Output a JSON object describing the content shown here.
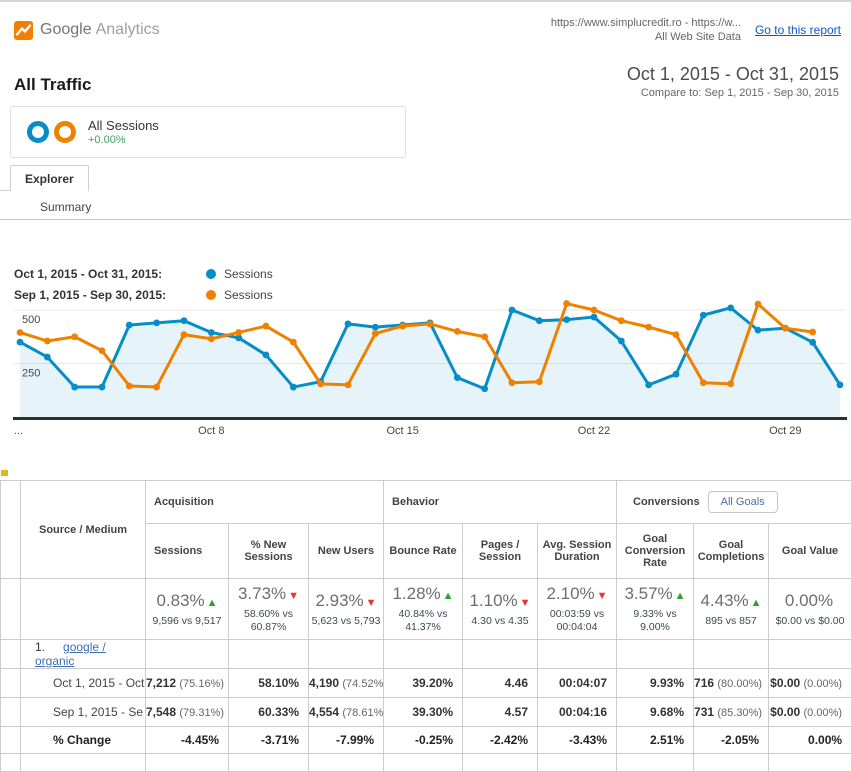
{
  "header": {
    "brand_google": "Google",
    "brand_analytics": "Analytics",
    "property_line1": "https://www.simplucredit.ro - https://w...",
    "property_line2": "All Web Site Data",
    "report_link": "Go to this report"
  },
  "title": {
    "page_title": "All Traffic",
    "date_range": "Oct 1, 2015 - Oct 31, 2015",
    "compare": "Compare to: Sep 1, 2015 - Sep 30, 2015"
  },
  "segment": {
    "name": "All Sessions",
    "delta": "+0.00%"
  },
  "tabs": {
    "explorer": "Explorer",
    "summary": "Summary"
  },
  "legend": [
    {
      "label": "Oct 1, 2015 - Oct 31, 2015:",
      "series": "Sessions",
      "color": "#058dc7"
    },
    {
      "label": "Sep 1, 2015 - Sep 30, 2015:",
      "series": "Sessions",
      "color": "#ee8100"
    }
  ],
  "chart_data": {
    "type": "line",
    "title": "Sessions trend, current vs previous period",
    "x_count": 31,
    "ylim": [
      0,
      500
    ],
    "grid": "horizontal",
    "yticks": [
      {
        "v": 500,
        "label": "500"
      },
      {
        "v": 250,
        "label": "250"
      }
    ],
    "xticks": [
      {
        "index": 0,
        "label": "..."
      },
      {
        "index": 7,
        "label": "Oct 8"
      },
      {
        "index": 14,
        "label": "Oct 15"
      },
      {
        "index": 21,
        "label": "Oct 22"
      },
      {
        "index": 28,
        "label": "Oct 29"
      }
    ],
    "series": [
      {
        "name": "Sessions (Oct 1, 2015 - Oct 31, 2015)",
        "color": "#058dc7",
        "area": true,
        "fill": "rgba(5,141,199,0.10)",
        "values": [
          350,
          280,
          140,
          140,
          430,
          440,
          450,
          395,
          370,
          290,
          140,
          165,
          435,
          420,
          430,
          440,
          184,
          132,
          500,
          450,
          455,
          467,
          355,
          150,
          200,
          476,
          510,
          406,
          415,
          349,
          150
        ]
      },
      {
        "name": "Sessions (Sep 1, 2015 - Sep 30, 2015)",
        "color": "#ee8100",
        "area": false,
        "fill": "none",
        "values": [
          395,
          355,
          375,
          310,
          145,
          140,
          385,
          365,
          395,
          425,
          350,
          155,
          150,
          390,
          425,
          435,
          400,
          375,
          160,
          165,
          530,
          500,
          450,
          420,
          385,
          160,
          155,
          528,
          415,
          397
        ]
      }
    ]
  },
  "table": {
    "row_header": "Source / Medium",
    "groups": {
      "acquisition": "Acquisition",
      "behavior": "Behavior",
      "conversions": "Conversions"
    },
    "all_goals_label": "All Goals",
    "columns": [
      "Sessions",
      "% New Sessions",
      "New Users",
      "Bounce Rate",
      "Pages / Session",
      "Avg. Session Duration",
      "Goal Conversion Rate",
      "Goal Completions",
      "Goal Value"
    ],
    "summary": [
      {
        "pct": "0.83%",
        "arrow": "▲",
        "cls": "arr up",
        "vs": "9,596 vs 9,517"
      },
      {
        "pct": "3.73%",
        "arrow": "▼",
        "cls": "arr down",
        "vs": "58.60% vs 60.87%"
      },
      {
        "pct": "2.93%",
        "arrow": "▼",
        "cls": "arr down",
        "vs": "5,623 vs 5,793"
      },
      {
        "pct": "1.28%",
        "arrow": "▲",
        "cls": "arr up",
        "vs": "40.84% vs 41.37%"
      },
      {
        "pct": "1.10%",
        "arrow": "▼",
        "cls": "arr down",
        "vs": "4.30 vs 4.35"
      },
      {
        "pct": "2.10%",
        "arrow": "▼",
        "cls": "arr down",
        "vs": "00:03:59 vs 00:04:04"
      },
      {
        "pct": "3.57%",
        "arrow": "▲",
        "cls": "arr up",
        "vs": "9.33% vs 9.00%"
      },
      {
        "pct": "4.43%",
        "arrow": "▲",
        "cls": "arr up",
        "vs": "895 vs 857"
      },
      {
        "pct": "0.00%",
        "arrow": "",
        "cls": "arr",
        "vs": "$0.00 vs $0.00"
      }
    ],
    "link_row": {
      "num": "1.",
      "link": "google / organic"
    },
    "rows": [
      {
        "label": "Oct 1, 2015 - Oct",
        "cells": [
          {
            "v": "7,212",
            "s": "(75.16%)"
          },
          {
            "v": "58.10%",
            "s": ""
          },
          {
            "v": "4,190",
            "s": "(74.52%)"
          },
          {
            "v": "39.20%",
            "s": ""
          },
          {
            "v": "4.46",
            "s": ""
          },
          {
            "v": "00:04:07",
            "s": ""
          },
          {
            "v": "9.93%",
            "s": ""
          },
          {
            "v": "716",
            "s": "(80.00%)"
          },
          {
            "v": "$0.00",
            "s": "(0.00%)"
          }
        ]
      },
      {
        "label": "Sep 1, 2015 - Se",
        "cells": [
          {
            "v": "7,548",
            "s": "(79.31%)"
          },
          {
            "v": "60.33%",
            "s": ""
          },
          {
            "v": "4,554",
            "s": "(78.61%)"
          },
          {
            "v": "39.30%",
            "s": ""
          },
          {
            "v": "4.57",
            "s": ""
          },
          {
            "v": "00:04:16",
            "s": ""
          },
          {
            "v": "9.68%",
            "s": ""
          },
          {
            "v": "731",
            "s": "(85.30%)"
          },
          {
            "v": "$0.00",
            "s": "(0.00%)"
          }
        ]
      }
    ],
    "change_row": {
      "label": "% Change",
      "cells": [
        "-4.45%",
        "-3.71%",
        "-7.99%",
        "-0.25%",
        "-2.42%",
        "-3.43%",
        "2.51%",
        "-2.05%",
        "0.00%"
      ]
    }
  }
}
